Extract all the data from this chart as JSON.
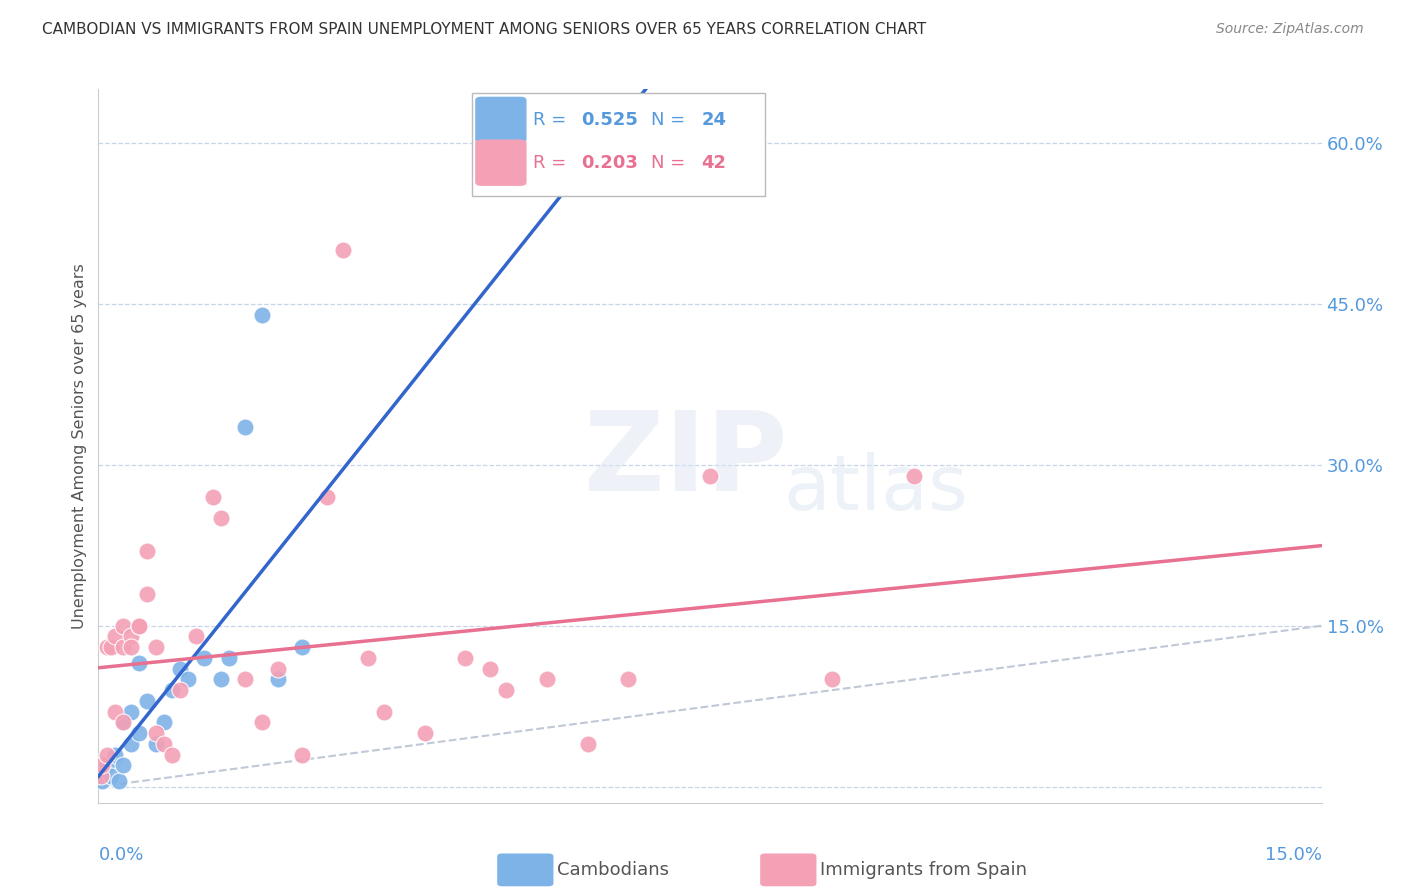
{
  "title": "CAMBODIAN VS IMMIGRANTS FROM SPAIN UNEMPLOYMENT AMONG SENIORS OVER 65 YEARS CORRELATION CHART",
  "source": "Source: ZipAtlas.com",
  "ylabel": "Unemployment Among Seniors over 65 years",
  "y_tick_labels": [
    "",
    "15.0%",
    "30.0%",
    "45.0%",
    "60.0%"
  ],
  "y_ticks": [
    0.0,
    0.15,
    0.3,
    0.45,
    0.6
  ],
  "x_ticks": [
    0.0,
    0.03,
    0.06,
    0.09,
    0.12,
    0.15
  ],
  "xmin": 0.0,
  "xmax": 0.15,
  "ymin": -0.015,
  "ymax": 0.65,
  "cambodian_color": "#7EB3E8",
  "spain_color": "#F4A0B5",
  "diagonal_color": "#C0C8D8",
  "cambodian_line_color": "#3366CC",
  "spain_line_color": "#E87090",
  "legend_r_cambodian": "0.525",
  "legend_n_cambodian": "24",
  "legend_r_spain": "0.203",
  "legend_n_spain": "42",
  "cambodian_x": [
    0.0005,
    0.001,
    0.0015,
    0.002,
    0.0025,
    0.003,
    0.003,
    0.004,
    0.004,
    0.005,
    0.005,
    0.006,
    0.007,
    0.008,
    0.009,
    0.01,
    0.011,
    0.013,
    0.015,
    0.016,
    0.018,
    0.02,
    0.022,
    0.025
  ],
  "cambodian_y": [
    0.005,
    0.02,
    0.01,
    0.03,
    0.005,
    0.02,
    0.06,
    0.04,
    0.07,
    0.05,
    0.115,
    0.08,
    0.04,
    0.06,
    0.09,
    0.11,
    0.1,
    0.12,
    0.1,
    0.12,
    0.335,
    0.44,
    0.1,
    0.13
  ],
  "spain_x": [
    0.0003,
    0.0005,
    0.001,
    0.001,
    0.0015,
    0.002,
    0.002,
    0.003,
    0.003,
    0.003,
    0.004,
    0.004,
    0.005,
    0.005,
    0.006,
    0.006,
    0.007,
    0.007,
    0.008,
    0.009,
    0.01,
    0.012,
    0.014,
    0.015,
    0.018,
    0.02,
    0.022,
    0.025,
    0.028,
    0.03,
    0.033,
    0.035,
    0.04,
    0.045,
    0.048,
    0.05,
    0.055,
    0.06,
    0.065,
    0.075,
    0.09,
    0.1
  ],
  "spain_y": [
    0.01,
    0.02,
    0.03,
    0.13,
    0.13,
    0.07,
    0.14,
    0.06,
    0.13,
    0.15,
    0.14,
    0.13,
    0.15,
    0.15,
    0.18,
    0.22,
    0.05,
    0.13,
    0.04,
    0.03,
    0.09,
    0.14,
    0.27,
    0.25,
    0.1,
    0.06,
    0.11,
    0.03,
    0.27,
    0.5,
    0.12,
    0.07,
    0.05,
    0.12,
    0.11,
    0.09,
    0.1,
    0.04,
    0.1,
    0.29,
    0.1,
    0.29
  ],
  "marker_size": 150
}
